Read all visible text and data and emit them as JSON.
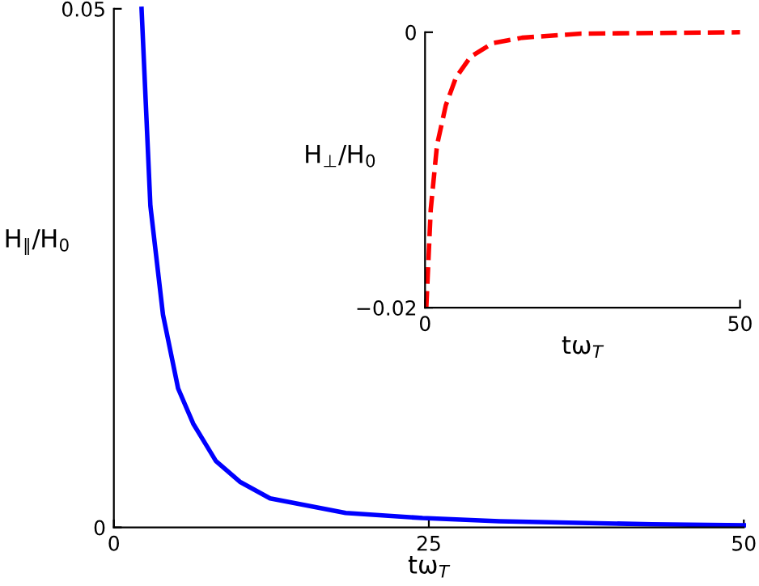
{
  "chart_data": [
    {
      "type": "line",
      "xlabel": "tω$_{T}$",
      "ylabel": "H$_{∥}$/H$_{0}$",
      "xlim": [
        0,
        50
      ],
      "ylim": [
        0,
        0.05
      ],
      "xticks": [
        0,
        25,
        50
      ],
      "yticks": [
        0,
        0.05
      ],
      "grid": false,
      "legend": false,
      "marker": "none",
      "series": [
        {
          "color": "#0000ff",
          "line_style": "solid",
          "x": [
            2.2,
            2.9,
            3.9,
            5.1,
            6.3,
            8.1,
            10,
            12.4,
            18.4,
            24.5,
            30.6,
            42.7,
            50
          ],
          "values": [
            0.05,
            0.031,
            0.0205,
            0.0134,
            0.01,
            0.0064,
            0.0044,
            0.0028,
            0.0014,
            0.0009,
            0.0006,
            0.0003,
            0.0002
          ]
        }
      ]
    },
    {
      "type": "line",
      "xlabel": "tω$_{T}$",
      "ylabel": "H$_{⊥}$/H$_{0}$",
      "xlim": [
        0,
        50
      ],
      "ylim": [
        -0.02,
        0
      ],
      "xticks": [
        0,
        50
      ],
      "yticks": [
        {
          "value": -0.02,
          "label": "−0.02"
        },
        0
      ],
      "grid": false,
      "legend": false,
      "marker": "none",
      "series": [
        {
          "color": "#ff0000",
          "line_style": "dashed",
          "x": [
            0.2,
            0.9,
            1.9,
            3.3,
            4.9,
            7.2,
            10.7,
            15.4,
            24.8,
            50
          ],
          "values": [
            -0.02,
            -0.0129,
            -0.0082,
            -0.0053,
            -0.0033,
            -0.0018,
            -0.0008,
            -0.0004,
            -0.0001,
            0
          ]
        }
      ]
    }
  ]
}
